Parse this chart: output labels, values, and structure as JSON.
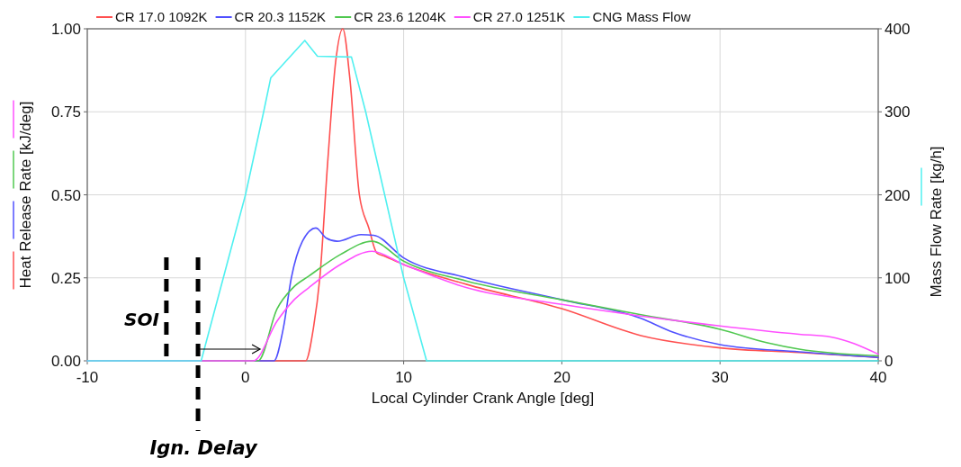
{
  "chart_data": {
    "type": "line",
    "xlabel": "Local Cylinder Crank Angle [deg]",
    "ylabel": "Heat Release Rate [kJ/deg]",
    "y2label": "Mass Flow Rate [kg/h]",
    "xlim": [
      -10,
      40
    ],
    "xticks": [
      -10,
      0,
      10,
      20,
      30,
      40
    ],
    "ylim": [
      0,
      1
    ],
    "yticks": [
      {
        "value": 0,
        "label": "0.00"
      },
      0.25,
      {
        "value": 0.5,
        "label": "0.50"
      },
      0.75,
      {
        "value": 1,
        "label": "1.00"
      }
    ],
    "y2lim": [
      0,
      400
    ],
    "y2ticks": [
      0,
      100,
      200,
      300,
      400
    ],
    "grid": true,
    "legend": "top",
    "line_style": "solid",
    "ref_lines": [
      {
        "axis": "x",
        "value": -5,
        "label": "SOI",
        "color": "#000000",
        "line_style": "dashed"
      },
      {
        "axis": "x",
        "value": -3,
        "label": "Ign. Delay",
        "color": "#000000",
        "line_style": "dashed"
      }
    ],
    "series": [
      {
        "name": "CR 17.0 1092K",
        "color": "#ff5050",
        "x": [
          -10,
          3.8,
          4.3,
          4.7,
          5.2,
          5.7,
          6.15,
          6.6,
          7.2,
          7.8,
          8.3,
          8.8,
          10,
          14,
          20,
          25,
          30,
          35,
          40
        ],
        "values": [
          0,
          0,
          0.1,
          0.25,
          0.6,
          0.9,
          1.0,
          0.85,
          0.5,
          0.4,
          0.325,
          0.315,
          0.29,
          0.23,
          0.157,
          0.076,
          0.039,
          0.025,
          0.01
        ]
      },
      {
        "name": "CR 20.3 1152K",
        "color": "#5050ff",
        "x": [
          -10,
          1.8,
          2.4,
          2.9,
          3.6,
          4.45,
          5.1,
          5.8,
          7.3,
          8.1,
          10,
          14,
          20,
          25,
          27,
          30,
          35,
          40
        ],
        "values": [
          0,
          0,
          0.1,
          0.25,
          0.36,
          0.4,
          0.37,
          0.36,
          0.38,
          0.378,
          0.31,
          0.25,
          0.184,
          0.128,
          0.087,
          0.049,
          0.027,
          0.01
        ]
      },
      {
        "name": "CR 23.6 1204K",
        "color": "#50c850",
        "x": [
          -10,
          0.8,
          2,
          3,
          4,
          6,
          8,
          10,
          14,
          20,
          25,
          30,
          33,
          35,
          40
        ],
        "values": [
          0,
          0,
          0.157,
          0.22,
          0.255,
          0.32,
          0.36,
          0.3,
          0.24,
          0.184,
          0.139,
          0.095,
          0.054,
          0.035,
          0.015
        ]
      },
      {
        "name": "CR 27.0 1251K",
        "color": "#ff50ff",
        "x": [
          -10,
          0.5,
          2,
          3,
          4,
          6,
          8,
          10,
          14,
          20,
          25,
          30,
          35,
          37,
          40
        ],
        "values": [
          0,
          0,
          0.12,
          0.18,
          0.22,
          0.29,
          0.33,
          0.29,
          0.22,
          0.17,
          0.135,
          0.105,
          0.08,
          0.072,
          0.02
        ]
      },
      {
        "name": "CNG Mass Flow",
        "color": "#50f0f0",
        "axis": "y2",
        "x": [
          -10,
          -2.8,
          -1.4,
          0,
          1.15,
          1.6,
          3.75,
          4.55,
          6.7,
          7.6,
          8.8,
          10,
          11.45,
          40
        ],
        "values": [
          0,
          0,
          100,
          200,
          300,
          341,
          386,
          367,
          366,
          300,
          200,
          100,
          0,
          0
        ]
      }
    ]
  }
}
